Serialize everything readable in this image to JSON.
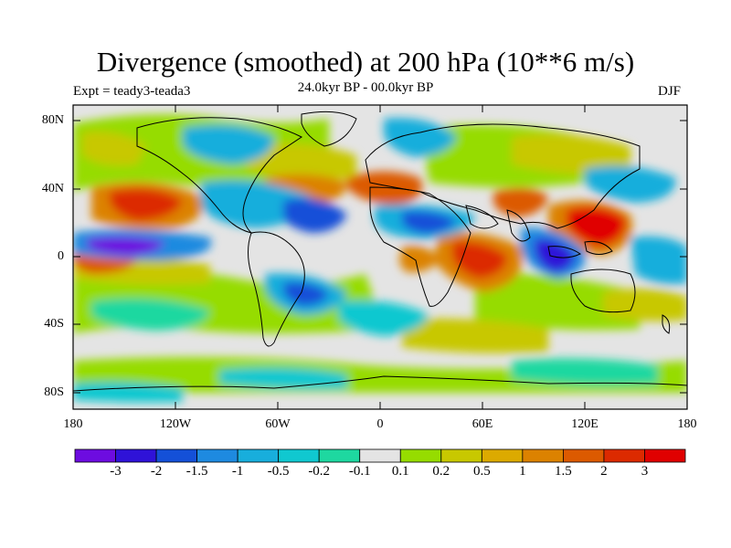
{
  "title": "Divergence (smoothed) at 200 hPa (10**6 m/s)",
  "experiment": "Expt = teady3-teada3",
  "period": "24.0kyr BP - 00.0kyr BP",
  "season": "DJF",
  "lat_labels": [
    "80N",
    "40N",
    "0",
    "40S",
    "80S"
  ],
  "lon_labels": [
    "180",
    "120W",
    "60W",
    "0",
    "60E",
    "120E",
    "180"
  ],
  "colorbar": {
    "labels": [
      "-3",
      "-2",
      "-1.5",
      "-1",
      "-0.5",
      "-0.2",
      "-0.1",
      "0.1",
      "0.2",
      "0.5",
      "1",
      "1.5",
      "2",
      "3"
    ],
    "colors": [
      "#6d0ce0",
      "#2f12d8",
      "#1450d8",
      "#1e8ae0",
      "#18aedc",
      "#10c8d0",
      "#1ed8a0",
      "#e4e4e4",
      "#96dc00",
      "#c8c800",
      "#dcaa00",
      "#dc8200",
      "#dc5a00",
      "#dc2a00",
      "#e00000"
    ]
  },
  "icons": {
    "map": "world-map-icon"
  }
}
